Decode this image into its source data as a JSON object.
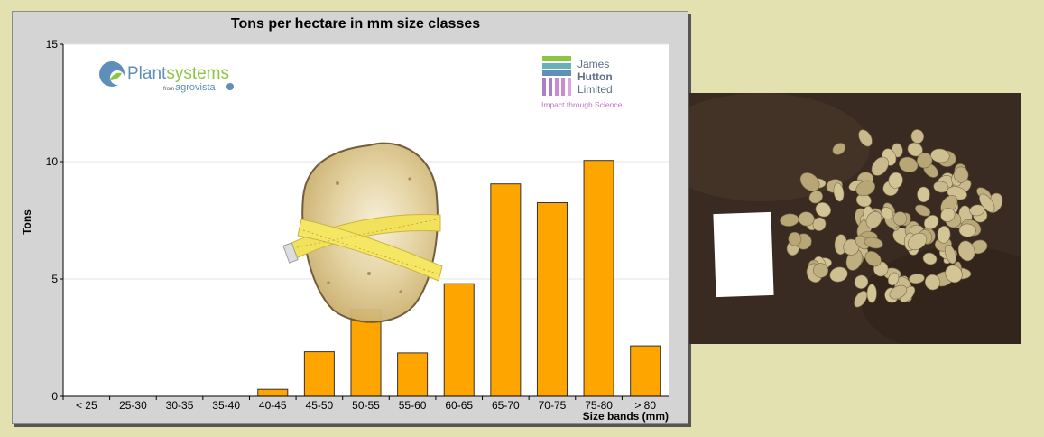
{
  "chart_data": {
    "type": "bar",
    "title": "Tons per hectare in mm size classes",
    "xlabel": "Size bands (mm)",
    "ylabel": "Tons",
    "ylim": [
      0,
      15
    ],
    "yticks": [
      0,
      5,
      10,
      15
    ],
    "grid": true,
    "categories": [
      "< 25",
      "25-30",
      "30-35",
      "35-40",
      "40-45",
      "45-50",
      "50-55",
      "55-60",
      "60-65",
      "65-70",
      "70-75",
      "75-80",
      "> 80"
    ],
    "values": [
      0,
      0,
      0,
      0,
      0.3,
      1.9,
      3.7,
      1.85,
      4.8,
      9.05,
      8.25,
      10.05,
      2.15
    ],
    "bar_color": "#ffa500"
  },
  "logos": {
    "plantsystems": {
      "part1": "Plant",
      "part2": "systems",
      "sub_from": "from",
      "sub_brand": "agrovista"
    },
    "hutton": {
      "line1": "James",
      "line2": "Hutton",
      "line3": "Limited",
      "tagline": "Impact through Science"
    }
  },
  "illustration": {
    "icon": "potato-measuring-tape-icon"
  },
  "photo": {
    "icon": "potatoes-on-soil-photo",
    "colors": {
      "soil": "#3a2b22",
      "potato": "#c9b98c",
      "card": "#ffffff"
    }
  }
}
